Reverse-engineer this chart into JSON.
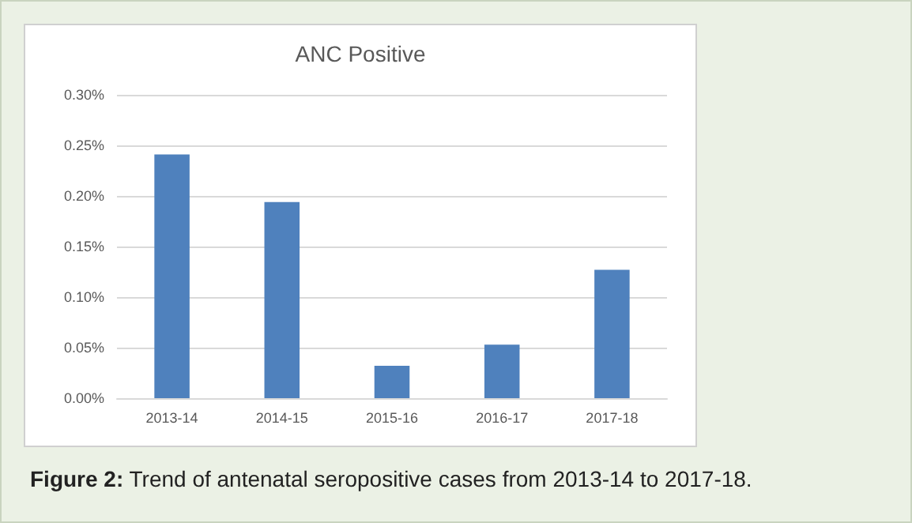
{
  "chart_data": {
    "type": "bar",
    "title": "ANC Positive",
    "categories": [
      "2013-14",
      "2014-15",
      "2015-16",
      "2016-17",
      "2017-18"
    ],
    "values": [
      0.241,
      0.194,
      0.032,
      0.053,
      0.127
    ],
    "color": "#4f81bd",
    "ylim": [
      0,
      0.3
    ],
    "yticks": [
      {
        "value": 0,
        "label": "0.00%"
      },
      {
        "value": 0.05,
        "label": "0.05%"
      },
      {
        "value": 0.1,
        "label": "0.10%"
      },
      {
        "value": 0.15,
        "label": "0.15%"
      },
      {
        "value": 0.2,
        "label": "0.20%"
      },
      {
        "value": 0.25,
        "label": "0.25%"
      },
      {
        "value": 0.3,
        "label": "0.30%"
      }
    ],
    "grid": "y",
    "annotations": [
      "Figure 2: Trend of antenatal seropositive cases from 2013-14 to 2017-18."
    ]
  }
}
